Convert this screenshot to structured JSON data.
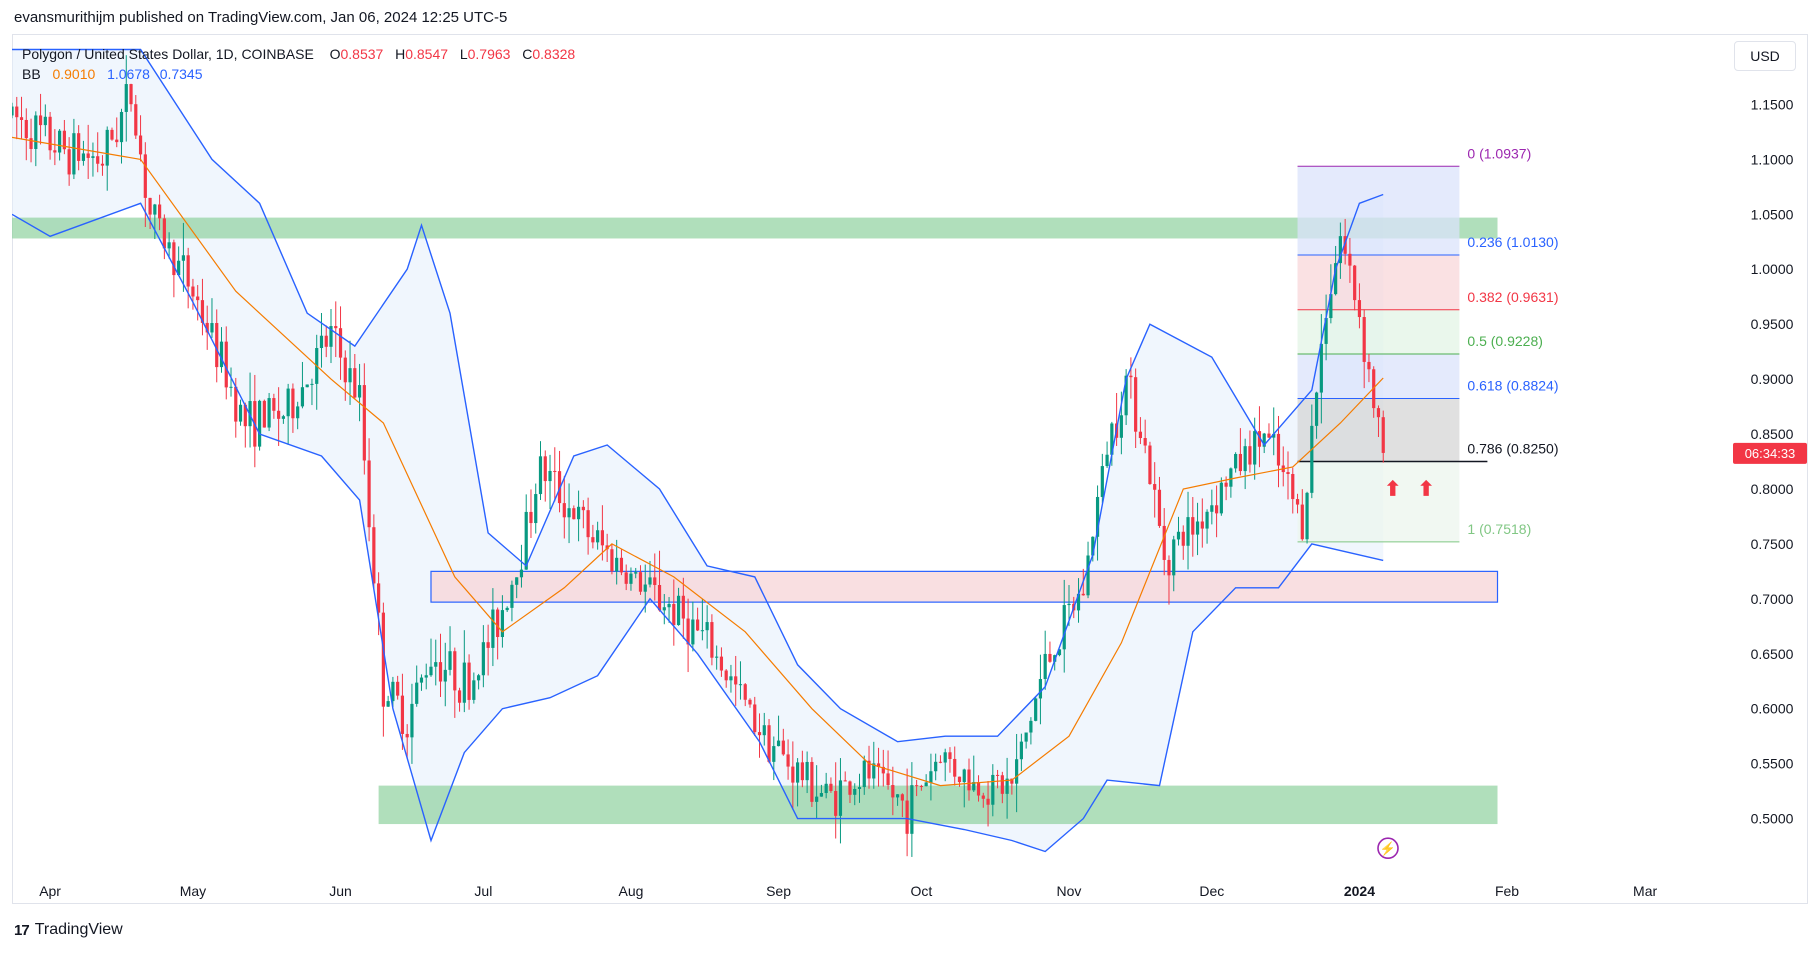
{
  "header": {
    "publisher_line": "evansmurithijm published on TradingView.com, Jan 06, 2024 12:25 UTC-5"
  },
  "legend": {
    "symbol": "Polygon / United States Dollar, 1D, COINBASE",
    "o_label": "O",
    "o_value": "0.8537",
    "h_label": "H",
    "h_value": "0.8547",
    "l_label": "L",
    "l_value": "0.7963",
    "c_label": "C",
    "c_value": "0.8328",
    "bb_label": "BB",
    "bb_basis": "0.9010",
    "bb_upper": "1.0678",
    "bb_lower": "0.7345"
  },
  "currency_button": "USD",
  "footer": {
    "brand": "TradingView",
    "logo_glyph": "17"
  },
  "colors": {
    "up": "#089981",
    "down": "#f23645",
    "basis": "#f57c00",
    "band": "#2962ff",
    "green_zone": "#8fd19e",
    "pink_zone": "#f8d7da",
    "price_tag": "#f23645"
  },
  "chart_data": {
    "type": "candlestick",
    "y_range": [
      0.455,
      1.195
    ],
    "y_ticks": [
      {
        "value": 0.5,
        "label": "0.5000"
      },
      {
        "value": 0.55,
        "label": "0.5500"
      },
      {
        "value": 0.6,
        "label": "0.6000"
      },
      {
        "value": 0.65,
        "label": "0.6500"
      },
      {
        "value": 0.7,
        "label": "0.7000"
      },
      {
        "value": 0.75,
        "label": "0.7500"
      },
      {
        "value": 0.8,
        "label": "0.8000"
      },
      {
        "value": 0.85,
        "label": "0.8500"
      },
      {
        "value": 0.9,
        "label": "0.9000"
      },
      {
        "value": 0.95,
        "label": "0.9500"
      },
      {
        "value": 1.0,
        "label": "1.0000"
      },
      {
        "value": 1.05,
        "label": "1.0500"
      },
      {
        "value": 1.1,
        "label": "1.1000"
      },
      {
        "value": 1.15,
        "label": "1.1500"
      }
    ],
    "x_range": [
      "2023-03-24",
      "2024-03-14"
    ],
    "x_ticks": [
      {
        "date": "2023-04-01",
        "label": "Apr"
      },
      {
        "date": "2023-05-01",
        "label": "May"
      },
      {
        "date": "2023-06-01",
        "label": "Jun"
      },
      {
        "date": "2023-07-01",
        "label": "Jul"
      },
      {
        "date": "2023-08-01",
        "label": "Aug"
      },
      {
        "date": "2023-09-01",
        "label": "Sep"
      },
      {
        "date": "2023-10-01",
        "label": "Oct"
      },
      {
        "date": "2023-11-01",
        "label": "Nov"
      },
      {
        "date": "2023-12-01",
        "label": "Dec"
      },
      {
        "date": "2024-01-01",
        "label": "2024"
      },
      {
        "date": "2024-02-01",
        "label": "Feb"
      },
      {
        "date": "2024-03-01",
        "label": "Mar"
      }
    ],
    "closes": [
      {
        "date": "2023-03-24",
        "close": 1.14
      },
      {
        "date": "2023-04-03",
        "close": 1.11
      },
      {
        "date": "2023-04-12",
        "close": 1.1
      },
      {
        "date": "2023-04-18",
        "close": 1.16
      },
      {
        "date": "2023-04-22",
        "close": 1.05
      },
      {
        "date": "2023-05-01",
        "close": 0.98
      },
      {
        "date": "2023-05-12",
        "close": 0.86
      },
      {
        "date": "2023-05-21",
        "close": 0.87
      },
      {
        "date": "2023-05-30",
        "close": 0.94
      },
      {
        "date": "2023-06-05",
        "close": 0.88
      },
      {
        "date": "2023-06-10",
        "close": 0.62
      },
      {
        "date": "2023-06-15",
        "close": 0.59
      },
      {
        "date": "2023-06-20",
        "close": 0.65
      },
      {
        "date": "2023-06-28",
        "close": 0.62
      },
      {
        "date": "2023-07-04",
        "close": 0.68
      },
      {
        "date": "2023-07-08",
        "close": 0.73
      },
      {
        "date": "2023-07-13",
        "close": 0.82
      },
      {
        "date": "2023-07-23",
        "close": 0.76
      },
      {
        "date": "2023-08-01",
        "close": 0.72
      },
      {
        "date": "2023-08-10",
        "close": 0.69
      },
      {
        "date": "2023-08-17",
        "close": 0.66
      },
      {
        "date": "2023-08-27",
        "close": 0.59
      },
      {
        "date": "2023-09-03",
        "close": 0.55
      },
      {
        "date": "2023-09-11",
        "close": 0.52
      },
      {
        "date": "2023-09-20",
        "close": 0.54
      },
      {
        "date": "2023-09-28",
        "close": 0.51
      },
      {
        "date": "2023-10-05",
        "close": 0.56
      },
      {
        "date": "2023-10-12",
        "close": 0.53
      },
      {
        "date": "2023-10-20",
        "close": 0.53
      },
      {
        "date": "2023-10-27",
        "close": 0.64
      },
      {
        "date": "2023-11-04",
        "close": 0.71
      },
      {
        "date": "2023-11-09",
        "close": 0.84
      },
      {
        "date": "2023-11-13",
        "close": 0.9
      },
      {
        "date": "2023-11-16",
        "close": 0.86
      },
      {
        "date": "2023-11-21",
        "close": 0.74
      },
      {
        "date": "2023-11-28",
        "close": 0.77
      },
      {
        "date": "2023-12-06",
        "close": 0.82
      },
      {
        "date": "2023-12-12",
        "close": 0.85
      },
      {
        "date": "2023-12-17",
        "close": 0.8
      },
      {
        "date": "2023-12-20",
        "close": 0.77
      },
      {
        "date": "2023-12-25",
        "close": 0.97
      },
      {
        "date": "2023-12-28",
        "close": 1.03
      },
      {
        "date": "2024-01-01",
        "close": 0.96
      },
      {
        "date": "2024-01-04",
        "close": 0.88
      },
      {
        "date": "2024-01-06",
        "close": 0.8328
      }
    ],
    "bollinger": {
      "upper": [
        {
          "date": "2023-03-24",
          "value": 1.2
        },
        {
          "date": "2023-04-20",
          "value": 1.2
        },
        {
          "date": "2023-05-05",
          "value": 1.1
        },
        {
          "date": "2023-05-15",
          "value": 1.06
        },
        {
          "date": "2023-05-25",
          "value": 0.96
        },
        {
          "date": "2023-06-04",
          "value": 0.93
        },
        {
          "date": "2023-06-15",
          "value": 1.0
        },
        {
          "date": "2023-06-18",
          "value": 1.04
        },
        {
          "date": "2023-06-24",
          "value": 0.96
        },
        {
          "date": "2023-07-02",
          "value": 0.76
        },
        {
          "date": "2023-07-10",
          "value": 0.73
        },
        {
          "date": "2023-07-20",
          "value": 0.83
        },
        {
          "date": "2023-07-27",
          "value": 0.84
        },
        {
          "date": "2023-08-07",
          "value": 0.8
        },
        {
          "date": "2023-08-17",
          "value": 0.73
        },
        {
          "date": "2023-08-27",
          "value": 0.72
        },
        {
          "date": "2023-09-05",
          "value": 0.64
        },
        {
          "date": "2023-09-14",
          "value": 0.6
        },
        {
          "date": "2023-09-26",
          "value": 0.57
        },
        {
          "date": "2023-10-06",
          "value": 0.575
        },
        {
          "date": "2023-10-17",
          "value": 0.575
        },
        {
          "date": "2023-10-27",
          "value": 0.62
        },
        {
          "date": "2023-11-06",
          "value": 0.74
        },
        {
          "date": "2023-11-13",
          "value": 0.9
        },
        {
          "date": "2023-11-18",
          "value": 0.95
        },
        {
          "date": "2023-12-01",
          "value": 0.92
        },
        {
          "date": "2023-12-12",
          "value": 0.84
        },
        {
          "date": "2023-12-22",
          "value": 0.89
        },
        {
          "date": "2023-12-27",
          "value": 1.0
        },
        {
          "date": "2024-01-01",
          "value": 1.06
        },
        {
          "date": "2024-01-06",
          "value": 1.068
        }
      ],
      "basis": [
        {
          "date": "2023-03-24",
          "value": 1.12
        },
        {
          "date": "2023-04-20",
          "value": 1.1
        },
        {
          "date": "2023-05-10",
          "value": 0.98
        },
        {
          "date": "2023-05-30",
          "value": 0.9
        },
        {
          "date": "2023-06-10",
          "value": 0.86
        },
        {
          "date": "2023-06-25",
          "value": 0.72
        },
        {
          "date": "2023-07-05",
          "value": 0.67
        },
        {
          "date": "2023-07-18",
          "value": 0.71
        },
        {
          "date": "2023-07-28",
          "value": 0.75
        },
        {
          "date": "2023-08-10",
          "value": 0.72
        },
        {
          "date": "2023-08-25",
          "value": 0.67
        },
        {
          "date": "2023-09-08",
          "value": 0.6
        },
        {
          "date": "2023-09-20",
          "value": 0.55
        },
        {
          "date": "2023-10-05",
          "value": 0.53
        },
        {
          "date": "2023-10-20",
          "value": 0.535
        },
        {
          "date": "2023-11-01",
          "value": 0.575
        },
        {
          "date": "2023-11-12",
          "value": 0.66
        },
        {
          "date": "2023-11-25",
          "value": 0.8
        },
        {
          "date": "2023-12-06",
          "value": 0.81
        },
        {
          "date": "2023-12-18",
          "value": 0.82
        },
        {
          "date": "2023-12-28",
          "value": 0.86
        },
        {
          "date": "2024-01-06",
          "value": 0.901
        }
      ],
      "lower": [
        {
          "date": "2023-03-24",
          "value": 1.05
        },
        {
          "date": "2023-04-01",
          "value": 1.03
        },
        {
          "date": "2023-04-20",
          "value": 1.06
        },
        {
          "date": "2023-05-01",
          "value": 0.97
        },
        {
          "date": "2023-05-15",
          "value": 0.85
        },
        {
          "date": "2023-05-28",
          "value": 0.83
        },
        {
          "date": "2023-06-05",
          "value": 0.79
        },
        {
          "date": "2023-06-12",
          "value": 0.6
        },
        {
          "date": "2023-06-20",
          "value": 0.48
        },
        {
          "date": "2023-06-27",
          "value": 0.56
        },
        {
          "date": "2023-07-05",
          "value": 0.6
        },
        {
          "date": "2023-07-15",
          "value": 0.61
        },
        {
          "date": "2023-07-25",
          "value": 0.63
        },
        {
          "date": "2023-08-05",
          "value": 0.7
        },
        {
          "date": "2023-08-15",
          "value": 0.65
        },
        {
          "date": "2023-08-28",
          "value": 0.57
        },
        {
          "date": "2023-09-05",
          "value": 0.5
        },
        {
          "date": "2023-09-15",
          "value": 0.5
        },
        {
          "date": "2023-09-28",
          "value": 0.5
        },
        {
          "date": "2023-10-10",
          "value": 0.49
        },
        {
          "date": "2023-10-20",
          "value": 0.48
        },
        {
          "date": "2023-10-27",
          "value": 0.47
        },
        {
          "date": "2023-11-04",
          "value": 0.5
        },
        {
          "date": "2023-11-09",
          "value": 0.535
        },
        {
          "date": "2023-11-20",
          "value": 0.53
        },
        {
          "date": "2023-11-27",
          "value": 0.67
        },
        {
          "date": "2023-12-06",
          "value": 0.71
        },
        {
          "date": "2023-12-15",
          "value": 0.71
        },
        {
          "date": "2023-12-22",
          "value": 0.75
        },
        {
          "date": "2024-01-01",
          "value": 0.74
        },
        {
          "date": "2024-01-06",
          "value": 0.735
        }
      ]
    },
    "zones": [
      {
        "type": "support",
        "from": "2023-03-24",
        "to": "2024-01-30",
        "low": 1.028,
        "high": 1.047
      },
      {
        "type": "support",
        "from": "2023-06-09",
        "to": "2024-01-30",
        "low": 0.495,
        "high": 0.53
      },
      {
        "type": "support",
        "from": "2023-06-20",
        "to": "2024-01-30",
        "low": 0.697,
        "high": 0.725
      }
    ],
    "fibonacci": {
      "from": "2023-12-19",
      "to": "2024-01-22",
      "levels": [
        {
          "ratio": "0",
          "price": 1.0937,
          "label": "0 (1.0937)",
          "color": "#9c27b0",
          "fill": "#dbe3fb"
        },
        {
          "ratio": "0.236",
          "price": 1.013,
          "label": "0.236 (1.0130)",
          "color": "#2962ff",
          "fill": "#f8d7da"
        },
        {
          "ratio": "0.382",
          "price": 0.9631,
          "label": "0.382 (0.9631)",
          "color": "#f23645",
          "fill": "#e3f4e6"
        },
        {
          "ratio": "0.5",
          "price": 0.9228,
          "label": "0.5 (0.9228)",
          "color": "#4caf50",
          "fill": "#dbe3fb"
        },
        {
          "ratio": "0.618",
          "price": 0.8824,
          "label": "0.618 (0.8824)",
          "color": "#2962ff",
          "fill": "#d6d6d6"
        },
        {
          "ratio": "0.786",
          "price": 0.825,
          "label": "0.786 (0.8250)",
          "color": "#131722",
          "fill": "#ecf6ee"
        },
        {
          "ratio": "1",
          "price": 0.7518,
          "label": "1 (0.7518)",
          "color": "#81c784",
          "fill": null
        }
      ]
    },
    "current_price": {
      "price": 0.8328,
      "countdown": "06:34:33"
    },
    "markers": [
      {
        "date": "2024-01-08",
        "price": 0.805,
        "label": "⬆"
      },
      {
        "date": "2024-01-15",
        "price": 0.805,
        "label": "⬆"
      }
    ],
    "event_marker": {
      "date": "2024-01-07",
      "price": 0.473,
      "label": "⚡"
    }
  }
}
